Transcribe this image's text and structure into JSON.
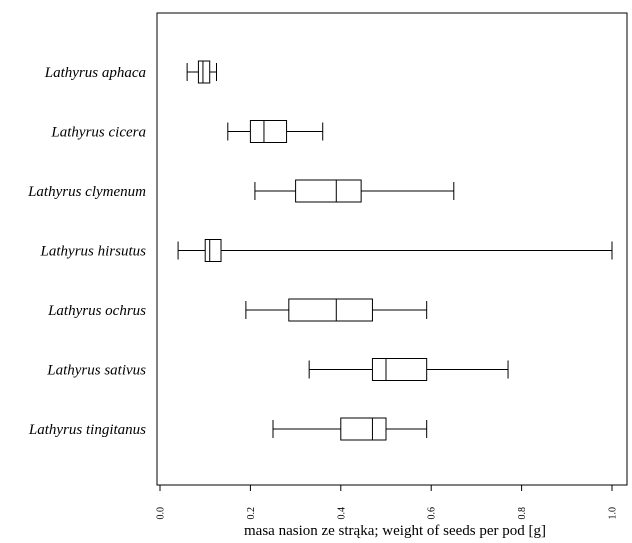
{
  "chart_data": {
    "type": "boxplot",
    "orientation": "horizontal",
    "title": "",
    "xlabel": "masa nasion ze strąka; weight of seeds per pod [g]",
    "ylabel": "",
    "xlim": [
      0.0,
      1.0
    ],
    "xticks": [
      0.0,
      0.2,
      0.4,
      0.6,
      0.8,
      1.0
    ],
    "xtick_labels": [
      "0.0",
      "0.2",
      "0.4",
      "0.6",
      "0.8",
      "1.0"
    ],
    "grid": false,
    "categories": [
      "Lathyrus aphaca",
      "Lathyrus cicera",
      "Lathyrus clymenum",
      "Lathyrus hirsutus",
      "Lathyrus ochrus",
      "Lathyrus sativus",
      "Lathyrus tingitanus"
    ],
    "boxes": [
      {
        "min": 0.06,
        "q1": 0.085,
        "median": 0.095,
        "q3": 0.11,
        "max": 0.125
      },
      {
        "min": 0.15,
        "q1": 0.2,
        "median": 0.23,
        "q3": 0.28,
        "max": 0.36
      },
      {
        "min": 0.21,
        "q1": 0.3,
        "median": 0.39,
        "q3": 0.445,
        "max": 0.65
      },
      {
        "min": 0.04,
        "q1": 0.1,
        "median": 0.11,
        "q3": 0.135,
        "max": 1.0
      },
      {
        "min": 0.19,
        "q1": 0.285,
        "median": 0.39,
        "q3": 0.47,
        "max": 0.59
      },
      {
        "min": 0.33,
        "q1": 0.47,
        "median": 0.5,
        "q3": 0.59,
        "max": 0.77
      },
      {
        "min": 0.25,
        "q1": 0.4,
        "median": 0.47,
        "q3": 0.5,
        "max": 0.59
      }
    ]
  }
}
